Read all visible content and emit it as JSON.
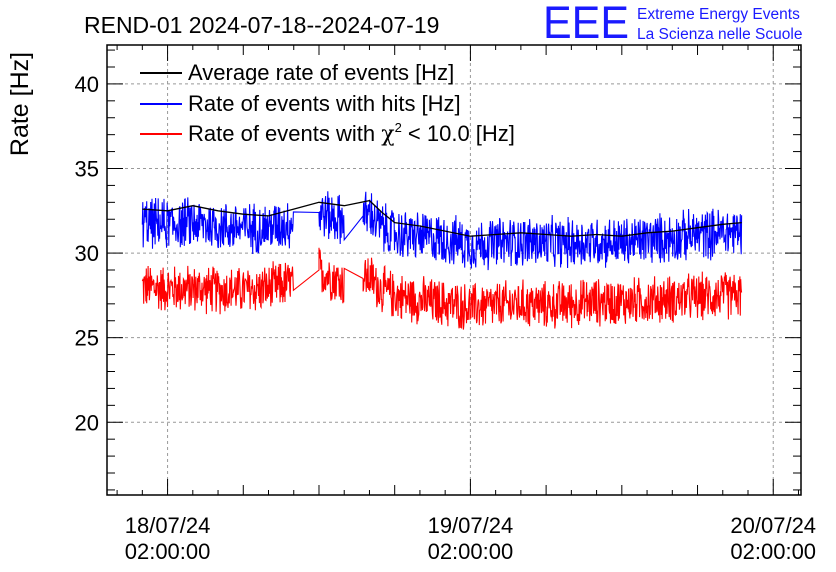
{
  "chart_data": {
    "type": "line",
    "title": "REND-01 2024-07-18--2024-07-19",
    "ylabel": "Rate [Hz]",
    "xlabel": "",
    "ylim": [
      15.7,
      42.3
    ],
    "xlim_hours": [
      -4.8,
      50.2
    ],
    "grid": true,
    "legend_position": "top-left",
    "x_ticks": [
      {
        "hours": 0,
        "date": "18/07/24",
        "time": "02:00:00"
      },
      {
        "hours": 24,
        "date": "19/07/24",
        "time": "02:00:00"
      },
      {
        "hours": 48,
        "date": "20/07/24",
        "time": "02:00:00"
      }
    ],
    "y_ticks": [
      20,
      25,
      30,
      35,
      40
    ],
    "legend": [
      {
        "label": "Average rate of events [Hz]",
        "color": "#000000"
      },
      {
        "label": "Rate of events with hits [Hz]",
        "color": "#0000ff"
      },
      {
        "label_prefix": "Rate of events with ",
        "symbol": "χ",
        "superscript": "2",
        "label_suffix": " < 10.0 [Hz]",
        "color": "#ff0000"
      }
    ],
    "series": [
      {
        "name": "Average rate of events [Hz]",
        "color": "#000000",
        "x_hours": [
          -2,
          0,
          2,
          4,
          6,
          8,
          10,
          12,
          14,
          16,
          17,
          18,
          20,
          22,
          24,
          26,
          28,
          30,
          32,
          34,
          36,
          38,
          40,
          42,
          44,
          45.5
        ],
        "values": [
          32.6,
          32.5,
          32.8,
          32.5,
          32.3,
          32.2,
          32.6,
          33.0,
          32.8,
          33.1,
          32.4,
          31.8,
          31.6,
          31.3,
          31.0,
          31.1,
          31.2,
          31.1,
          31.0,
          31.1,
          31.0,
          31.2,
          31.3,
          31.5,
          31.7,
          31.8
        ]
      },
      {
        "name": "Rate of events with hits [Hz]",
        "color": "#0000ff",
        "mean_x_hours": [
          -2,
          0,
          2,
          4,
          6,
          8,
          10,
          12,
          14,
          16,
          17,
          18,
          20,
          22,
          24,
          26,
          28,
          30,
          32,
          34,
          36,
          38,
          40,
          42,
          44,
          45.5
        ],
        "mean_values": [
          31.8,
          31.7,
          31.8,
          31.6,
          31.5,
          31.5,
          31.8,
          32.4,
          31.9,
          32.3,
          31.5,
          31.1,
          31.0,
          30.8,
          30.5,
          30.6,
          30.7,
          30.6,
          30.6,
          30.7,
          30.6,
          30.8,
          30.9,
          31.1,
          31.2,
          31.3
        ],
        "fluctuation": 1.7
      },
      {
        "name": "Rate of events with chi2 < 10.0 [Hz]",
        "color": "#ff0000",
        "mean_x_hours": [
          -2,
          0,
          2,
          4,
          6,
          8,
          10,
          12,
          14,
          16,
          17,
          18,
          20,
          22,
          24,
          26,
          28,
          30,
          32,
          34,
          36,
          38,
          40,
          42,
          44,
          45.5
        ],
        "mean_values": [
          28.0,
          27.9,
          27.9,
          27.8,
          27.8,
          27.9,
          28.3,
          29.0,
          28.2,
          28.6,
          27.8,
          27.5,
          27.2,
          27.0,
          26.8,
          26.9,
          27.0,
          26.9,
          27.0,
          27.1,
          27.1,
          27.2,
          27.3,
          27.4,
          27.5,
          27.5
        ],
        "fluctuation": 1.6
      }
    ],
    "data_segments_hours": [
      [
        -2,
        10
      ],
      [
        12,
        14
      ],
      [
        15.5,
        45.5
      ]
    ]
  },
  "logo": {
    "mark": "EEE",
    "line1": "Extreme Energy Events",
    "line2": "La Scienza nelle Scuole",
    "color": "#1a1aff"
  }
}
